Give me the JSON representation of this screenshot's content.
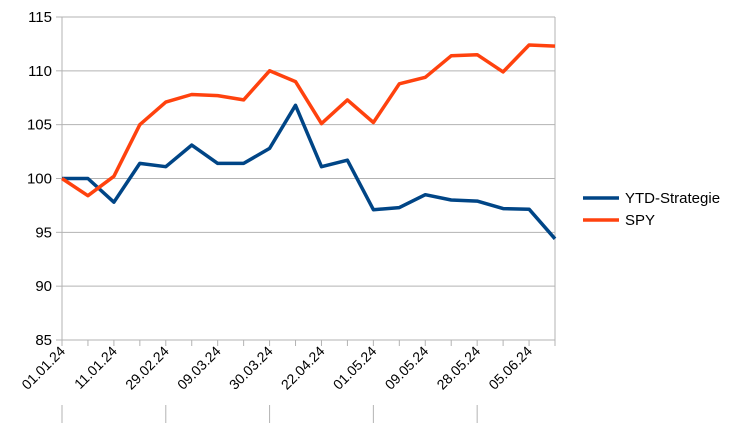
{
  "chart_data": {
    "type": "line",
    "categories": [
      "01.01.24",
      "",
      "11.01.24",
      "",
      "29.02.24",
      "",
      "09.03.24",
      "",
      "30.03.24",
      "",
      "22.04.24",
      "",
      "01.05.24",
      "",
      "09.05.24",
      "",
      "28.05.24",
      "",
      "05.06.24",
      ""
    ],
    "series": [
      {
        "name": "YTD-Strategie",
        "color": "#004586",
        "values": [
          100,
          100,
          97.8,
          101.4,
          101.1,
          103.1,
          101.4,
          101.4,
          102.8,
          106.8,
          101.1,
          101.7,
          97.1,
          97.3,
          98.5,
          98,
          97.9,
          97.2,
          97.15,
          94.4
        ]
      },
      {
        "name": "SPY",
        "color": "#ff420e",
        "values": [
          100,
          98.4,
          100.2,
          105,
          107.1,
          107.8,
          107.7,
          107.3,
          110,
          109,
          105.1,
          107.3,
          105.2,
          108.8,
          109.4,
          111.4,
          111.5,
          109.9,
          112.4,
          112.3
        ]
      }
    ],
    "title": "",
    "xlabel": "",
    "ylabel": "",
    "ylim": [
      85,
      115
    ],
    "yticks": [
      "85",
      "90",
      "95",
      "100",
      "105",
      "110",
      "115"
    ],
    "grid": true,
    "legend": "right"
  }
}
